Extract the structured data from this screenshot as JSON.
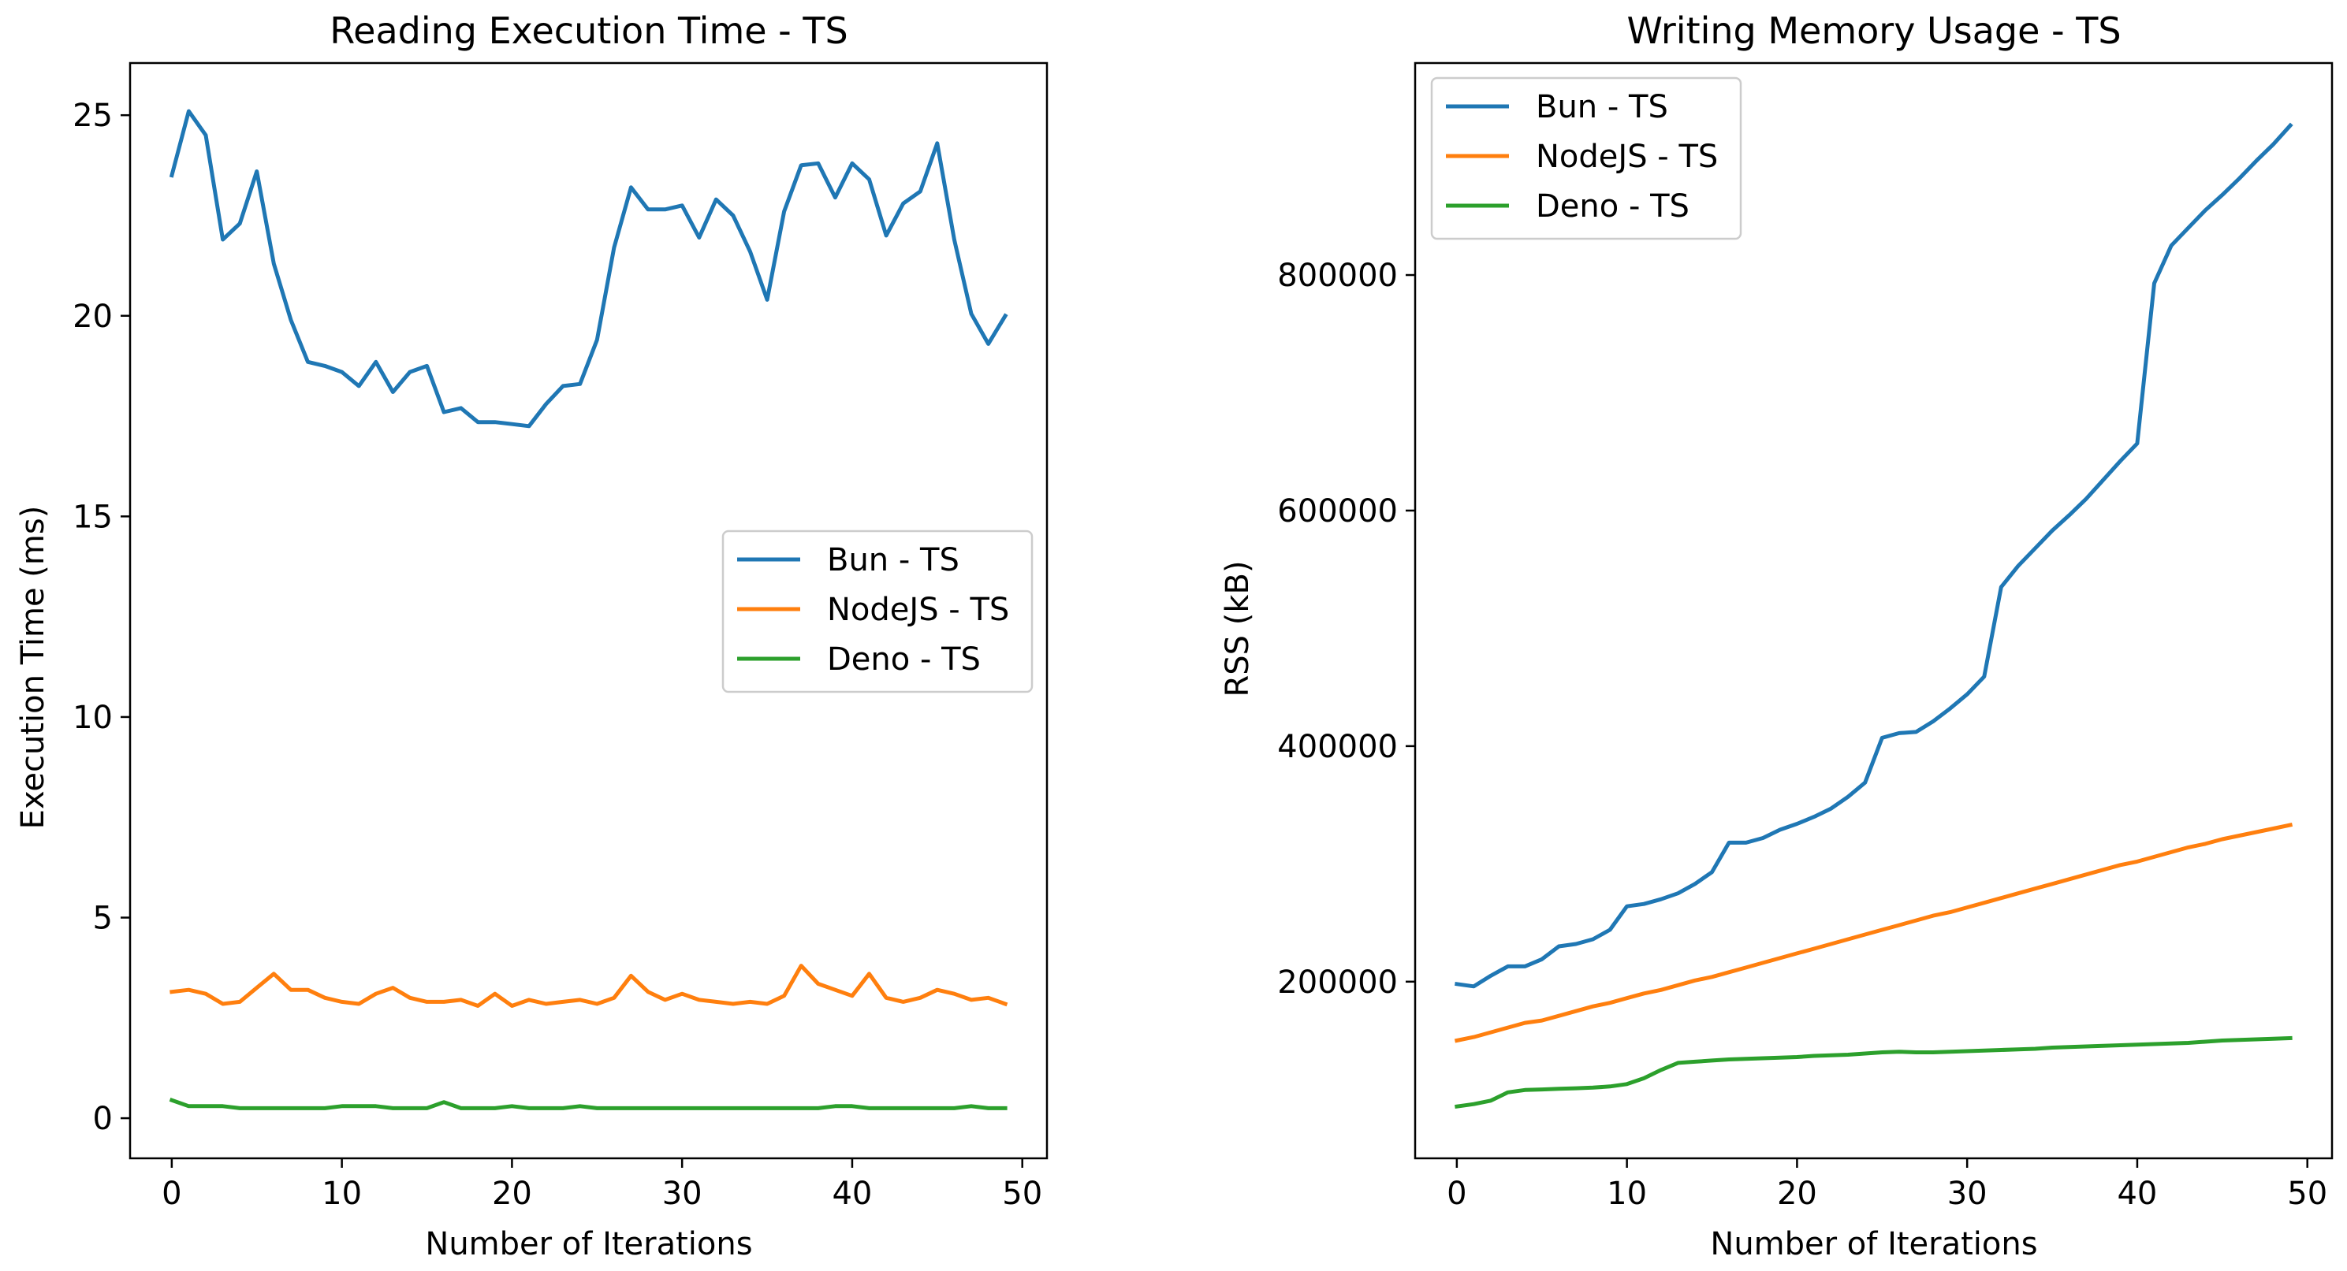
{
  "colors": {
    "bun": "#1f77b4",
    "node": "#ff7f0e",
    "deno": "#2ca02c"
  },
  "chart_data": [
    {
      "type": "line",
      "title": "Reading Execution Time - TS",
      "xlabel": "Number of Iterations",
      "ylabel": "Execution Time (ms)",
      "xlim": [
        -2.45,
        51.45
      ],
      "ylim": [
        -1.0,
        26.3
      ],
      "xticks": [
        0,
        10,
        20,
        30,
        40,
        50
      ],
      "yticks": [
        0,
        5,
        10,
        15,
        20,
        25
      ],
      "legend_position": "center-right",
      "x": [
        0,
        1,
        2,
        3,
        4,
        5,
        6,
        7,
        8,
        9,
        10,
        11,
        12,
        13,
        14,
        15,
        16,
        17,
        18,
        19,
        20,
        21,
        22,
        23,
        24,
        25,
        26,
        27,
        28,
        29,
        30,
        31,
        32,
        33,
        34,
        35,
        36,
        37,
        38,
        39,
        40,
        41,
        42,
        43,
        44,
        45,
        46,
        47,
        48,
        49
      ],
      "series": [
        {
          "name": "Bun - TS",
          "color": "#1f77b4",
          "values": [
            23.5,
            25.1,
            24.5,
            21.9,
            22.3,
            23.6,
            21.3,
            19.9,
            18.85,
            18.75,
            18.6,
            18.25,
            18.85,
            18.1,
            18.6,
            18.75,
            17.6,
            17.7,
            17.35,
            17.35,
            17.3,
            17.25,
            17.8,
            18.25,
            18.3,
            19.4,
            21.7,
            23.2,
            22.65,
            22.65,
            22.75,
            21.95,
            22.9,
            22.5,
            21.6,
            20.4,
            22.6,
            23.75,
            23.8,
            22.95,
            23.8,
            23.4,
            22.0,
            22.8,
            23.1,
            24.3,
            21.9,
            20.05,
            19.3,
            20.0
          ]
        },
        {
          "name": "NodeJS - TS",
          "color": "#ff7f0e",
          "values": [
            3.15,
            3.2,
            3.1,
            2.85,
            2.9,
            3.25,
            3.6,
            3.2,
            3.2,
            3.0,
            2.9,
            2.85,
            3.1,
            3.25,
            3.0,
            2.9,
            2.9,
            2.95,
            2.8,
            3.1,
            2.8,
            2.95,
            2.85,
            2.9,
            2.95,
            2.85,
            3.0,
            3.55,
            3.15,
            2.95,
            3.1,
            2.95,
            2.9,
            2.85,
            2.9,
            2.85,
            3.05,
            3.8,
            3.35,
            3.2,
            3.05,
            3.6,
            3.0,
            2.9,
            3.0,
            3.2,
            3.1,
            2.95,
            3.0,
            2.85
          ]
        },
        {
          "name": "Deno - TS",
          "color": "#2ca02c",
          "values": [
            0.45,
            0.3,
            0.3,
            0.3,
            0.25,
            0.25,
            0.25,
            0.25,
            0.25,
            0.25,
            0.3,
            0.3,
            0.3,
            0.25,
            0.25,
            0.25,
            0.4,
            0.25,
            0.25,
            0.25,
            0.3,
            0.25,
            0.25,
            0.25,
            0.3,
            0.25,
            0.25,
            0.25,
            0.25,
            0.25,
            0.25,
            0.25,
            0.25,
            0.25,
            0.25,
            0.25,
            0.25,
            0.25,
            0.25,
            0.3,
            0.3,
            0.25,
            0.25,
            0.25,
            0.25,
            0.25,
            0.25,
            0.3,
            0.25,
            0.25
          ]
        }
      ]
    },
    {
      "type": "line",
      "title": "Writing Memory Usage - TS",
      "xlabel": "Number of Iterations",
      "ylabel": "RSS (kB)",
      "xlim": [
        -2.45,
        51.45
      ],
      "ylim": [
        50000,
        980000
      ],
      "xticks": [
        0,
        10,
        20,
        30,
        40,
        50
      ],
      "yticks": [
        200000,
        400000,
        600000,
        800000
      ],
      "legend_position": "upper-left",
      "x": [
        0,
        1,
        2,
        3,
        4,
        5,
        6,
        7,
        8,
        9,
        10,
        11,
        12,
        13,
        14,
        15,
        16,
        17,
        18,
        19,
        20,
        21,
        22,
        23,
        24,
        25,
        26,
        27,
        28,
        29,
        30,
        31,
        32,
        33,
        34,
        35,
        36,
        37,
        38,
        39,
        40,
        41,
        42,
        43,
        44,
        45,
        46,
        47,
        48,
        49
      ],
      "series": [
        {
          "name": "Bun - TS",
          "color": "#1f77b4",
          "values": [
            198000,
            196000,
            205000,
            213000,
            213000,
            219000,
            230000,
            232000,
            236000,
            244000,
            264000,
            266000,
            270000,
            275000,
            283000,
            293000,
            318000,
            318000,
            322000,
            329000,
            334000,
            340000,
            347000,
            357000,
            369000,
            407000,
            411000,
            412000,
            421000,
            432000,
            444000,
            459000,
            535000,
            553000,
            568000,
            583000,
            596000,
            610000,
            626000,
            642000,
            657000,
            793000,
            825000,
            840000,
            855000,
            868000,
            882000,
            897000,
            911000,
            927000
          ]
        },
        {
          "name": "NodeJS - TS",
          "color": "#ff7f0e",
          "values": [
            150000,
            153000,
            157000,
            161000,
            165000,
            167000,
            171000,
            175000,
            179000,
            182000,
            186000,
            190000,
            193000,
            197000,
            201000,
            204000,
            208000,
            212000,
            216000,
            220000,
            224000,
            228000,
            232000,
            236000,
            240000,
            244000,
            248000,
            252000,
            256000,
            259000,
            263000,
            267000,
            271000,
            275000,
            279000,
            283000,
            287000,
            291000,
            295000,
            299000,
            302000,
            306000,
            310000,
            314000,
            317000,
            321000,
            324000,
            327000,
            330000,
            333000
          ]
        },
        {
          "name": "Deno - TS",
          "color": "#2ca02c",
          "values": [
            94000,
            96000,
            99000,
            106000,
            108000,
            108500,
            109000,
            109500,
            110000,
            111000,
            113000,
            118000,
            125000,
            131000,
            132000,
            133000,
            134000,
            134500,
            135000,
            135500,
            136000,
            137000,
            137500,
            138000,
            139000,
            140000,
            140500,
            140000,
            140000,
            140500,
            141000,
            141500,
            142000,
            142500,
            143000,
            144000,
            144500,
            145000,
            145500,
            146000,
            146500,
            147000,
            147500,
            148000,
            149000,
            150000,
            150500,
            151000,
            151500,
            152000
          ]
        }
      ]
    }
  ]
}
